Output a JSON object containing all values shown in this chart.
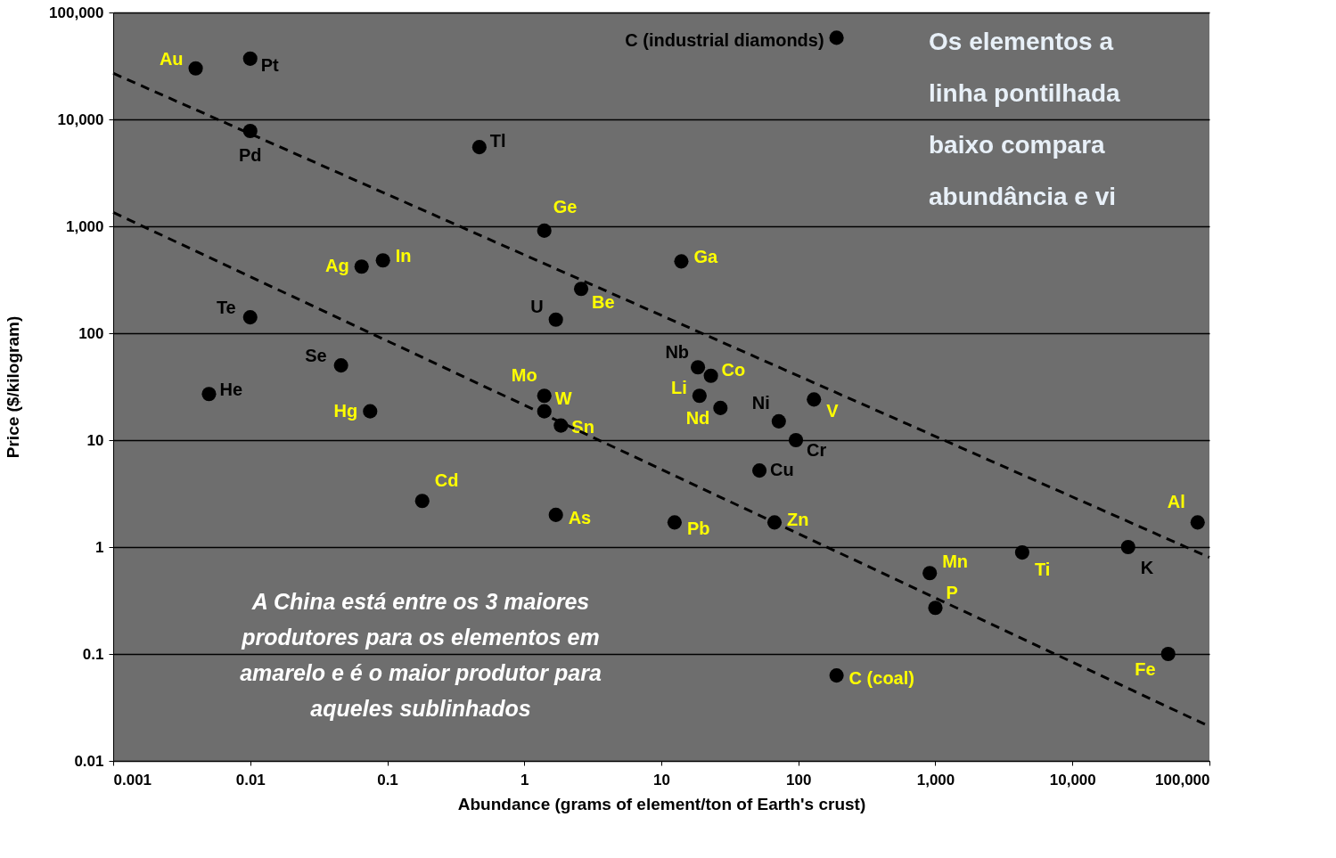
{
  "chart_data": {
    "type": "scatter",
    "xlabel": "Abundance (grams of element/ton of Earth's crust)",
    "ylabel": "Price ($/kilogram)",
    "log": "xy",
    "xlim": [
      0.001,
      100000
    ],
    "ylim": [
      0.01,
      100000
    ],
    "xticks": [
      0.001,
      0.01,
      0.1,
      1,
      10,
      100,
      {
        "value": 1000,
        "label": "1,000"
      },
      {
        "value": 10000,
        "label": "10,000"
      },
      {
        "value": 100000,
        "label": "100,000"
      }
    ],
    "yticks": [
      0.01,
      0.1,
      1,
      10,
      100,
      {
        "value": 1000,
        "label": "1,000"
      },
      {
        "value": 10000,
        "label": "10,000"
      },
      {
        "value": 100000,
        "label": "100,000"
      }
    ],
    "grid": "y",
    "marker": "circle",
    "series": [
      {
        "color": "#000000",
        "x": [
          0.004,
          0.065,
          0.093,
          1.4,
          14,
          2.6,
          1.4,
          1.4,
          1.85,
          0.075,
          19,
          23,
          27,
          130,
          0.18,
          1.7,
          12.5,
          67,
          910,
          1000,
          4300,
          82000,
          50000,
          190
        ],
        "values": [
          30000,
          420,
          480,
          910,
          470,
          260,
          26,
          18.6,
          13.7,
          18.6,
          26,
          40,
          20,
          24,
          2.7,
          2.0,
          1.7,
          1.7,
          0.57,
          0.27,
          0.89,
          1.7,
          0.1,
          0.063
        ],
        "value_labels": [
          "Au",
          "Ag",
          "In",
          "Ge",
          "Ga",
          "Be",
          "Mo",
          "W",
          "Sn",
          "Hg",
          "Li",
          "Co",
          "Nd",
          "V",
          "Cd",
          "As",
          "Pb",
          "Zn",
          "Mn",
          "P",
          "Ti",
          "Al",
          "Fe",
          "C (coal)"
        ]
      },
      {
        "color": "#000000",
        "x": [
          0.01,
          0.01,
          190,
          0.47,
          1.7,
          0.01,
          0.046,
          0.005,
          18.5,
          72,
          96,
          52,
          25500
        ],
        "values": [
          37000,
          7800,
          58000,
          5500,
          134,
          141,
          50,
          27,
          48,
          15,
          10,
          5.2,
          1
        ],
        "value_labels": [
          "Pt",
          "Pd",
          "C (industrial diamonds)",
          "Tl",
          "U",
          "Te",
          "Se",
          "He",
          "Nb",
          "Ni",
          "Cr",
          "Cu",
          "K"
        ]
      },
      {
        "type": "line",
        "color": "#000000",
        "line_style": "dashed",
        "marker": "none",
        "x": [
          0.001,
          100000
        ],
        "values": [
          27000,
          0.8
        ]
      },
      {
        "type": "line",
        "color": "#000000",
        "line_style": "dashed",
        "marker": "none",
        "x": [
          0.001,
          100000
        ],
        "values": [
          1350,
          0.021
        ]
      }
    ],
    "annotations": [
      "A China está entre os 3 maiores\nprodutores para os elementos em\namarelo e é o maior produtor para\naqueles sublinhados",
      "Os elementos a\nlinha pontilhada\nbaixo compara\nabundância e vi"
    ]
  }
}
